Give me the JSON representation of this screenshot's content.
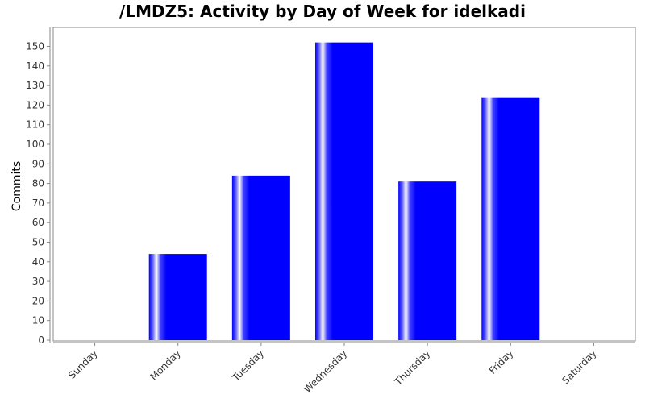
{
  "chart_data": {
    "type": "bar",
    "title": "/LMDZ5: Activity by Day of Week for idelkadi",
    "xlabel": "",
    "ylabel": "Commits",
    "categories": [
      "Sunday",
      "Monday",
      "Tuesday",
      "Wednesday",
      "Thursday",
      "Friday",
      "Saturday"
    ],
    "values": [
      0,
      44,
      84,
      152,
      81,
      124,
      0
    ],
    "ylim": [
      0,
      160
    ],
    "yticks": [
      0,
      10,
      20,
      30,
      40,
      50,
      60,
      70,
      80,
      90,
      100,
      110,
      120,
      130,
      140,
      150
    ],
    "bar_color": "#0000ff",
    "grid": false,
    "legend": "none"
  }
}
